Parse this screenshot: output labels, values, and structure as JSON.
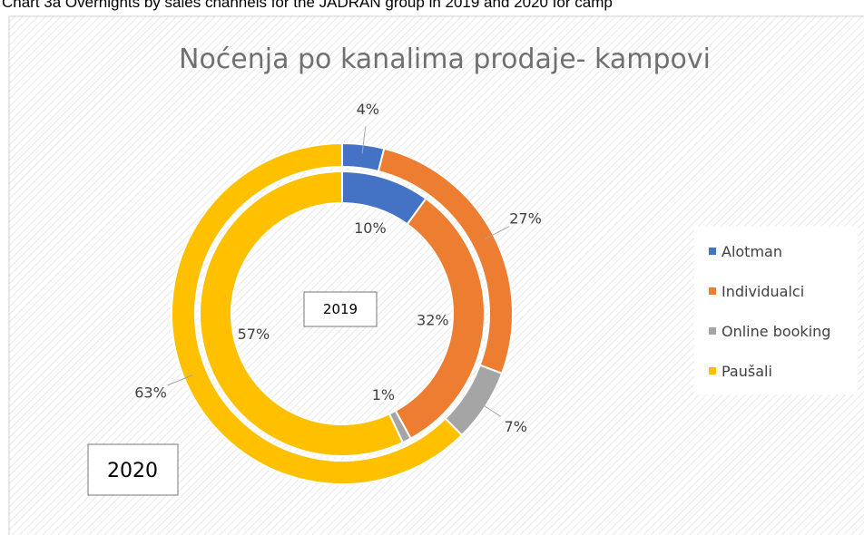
{
  "caption": "Chart 3a Overnights by sales channels for the JADRAN group in 2019 and 2020 for camp",
  "chart_data": {
    "type": "doughnut",
    "title": "Noćenja po kanalima prodaje- kampovi",
    "categories": [
      "Alotman",
      "Individualci",
      "Online booking",
      "Paušali"
    ],
    "colors": [
      "#4472c4",
      "#ed7d31",
      "#a5a5a5",
      "#ffc000"
    ],
    "series": [
      {
        "name": "2019",
        "values": [
          10,
          32,
          1,
          57
        ],
        "value_labels": [
          "10%",
          "32%",
          "1%",
          "57%"
        ]
      },
      {
        "name": "2020",
        "values": [
          4,
          27,
          7,
          63
        ],
        "value_labels": [
          "4%",
          "27%",
          "7%",
          "63%"
        ]
      }
    ],
    "legend": "right"
  }
}
